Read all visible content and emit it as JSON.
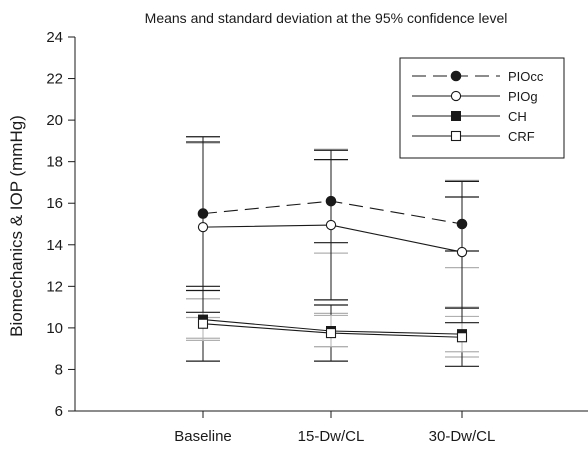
{
  "chart_data": {
    "type": "line",
    "title": "Means and standard deviation at the 95% confidence level",
    "xlabel": "",
    "ylabel": "Biomechanics & IOP (mmHg)",
    "categories": [
      "Baseline",
      "15-Dw/CL",
      "30-Dw/CL"
    ],
    "ylim": [
      6,
      24
    ],
    "yticks": [
      6,
      8,
      10,
      12,
      14,
      16,
      18,
      20,
      22,
      24
    ],
    "grid": false,
    "legend_position": "top-right",
    "series": [
      {
        "name": "PIOcc",
        "values": [
          15.5,
          16.1,
          15.0
        ],
        "error": [
          3.7,
          2.0,
          1.3
        ],
        "error_color": "#1a1a1a",
        "marker": "filled-circle",
        "line_style": "dashed"
      },
      {
        "name": "PIOg",
        "values": [
          14.85,
          14.95,
          13.65
        ],
        "error": [
          4.1,
          3.6,
          3.4
        ],
        "error_color": "#1a1a1a",
        "marker": "open-circle",
        "line_style": "solid"
      },
      {
        "name": "CH",
        "values": [
          10.4,
          9.85,
          9.7
        ],
        "error": [
          1.0,
          0.75,
          0.85
        ],
        "error_color": "#b0b0b0",
        "marker": "filled-square",
        "line_style": "solid"
      },
      {
        "name": "CRF",
        "values": [
          10.2,
          9.75,
          9.55
        ],
        "error": [
          1.8,
          1.35,
          1.4
        ],
        "error_color": "#1a1a1a",
        "marker": "open-square",
        "line_style": "solid"
      }
    ],
    "gray_bars": [
      {
        "category": "Baseline",
        "low": 9.5,
        "high": 18.9
      },
      {
        "category": "15-Dw/CL",
        "low": 13.6,
        "high": 18.6
      },
      {
        "category": "30-Dw/CL",
        "low": 12.9,
        "high": 17.1
      },
      {
        "category": "Baseline",
        "low": 10.5,
        "high": 11.4
      },
      {
        "category": "15-Dw/CL",
        "low": 9.1,
        "high": 10.7
      },
      {
        "category": "30-Dw/CL",
        "low": 8.6,
        "high": 11.0
      }
    ]
  }
}
